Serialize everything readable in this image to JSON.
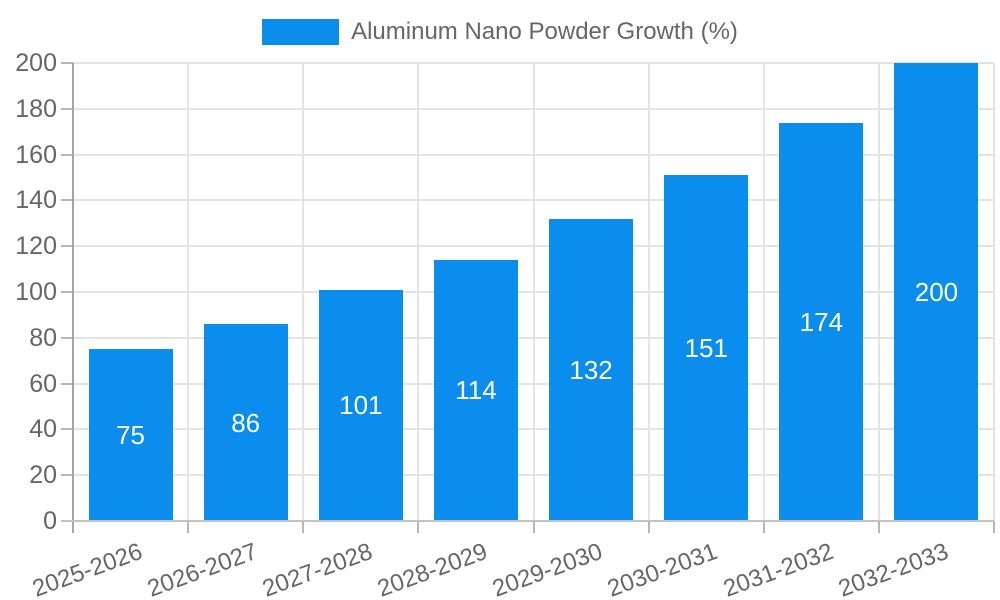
{
  "legend": {
    "label": "Aluminum Nano Powder Growth (%)"
  },
  "colors": {
    "bar": "#0a8dec",
    "grid_line": "#e4e4e4",
    "tick": "#b7b7b7",
    "y_axis_line": "#a5a5a5",
    "x_axis_line": "#c2c2c2",
    "axis_label": "#666666",
    "value_label": "#ffffff",
    "background": "#ffffff"
  },
  "chart_data": {
    "type": "bar",
    "title": "Aluminum Nano Powder Growth (%)",
    "series_name": "Aluminum Nano Powder Growth (%)",
    "categories": [
      "2025-2026",
      "2026-2027",
      "2027-2028",
      "2028-2029",
      "2029-2030",
      "2030-2031",
      "2031-2032",
      "2032-2033"
    ],
    "values": [
      75,
      86,
      101,
      114,
      132,
      151,
      174,
      200
    ],
    "xlabel": "",
    "ylabel": "",
    "ylim": [
      0,
      200
    ],
    "y_ticks": [
      0,
      20,
      40,
      60,
      80,
      100,
      120,
      140,
      160,
      180,
      200
    ],
    "grid": true,
    "legend_position": "top-center",
    "value_label_position": "inside-center",
    "x_label_rotation_deg": -20
  }
}
